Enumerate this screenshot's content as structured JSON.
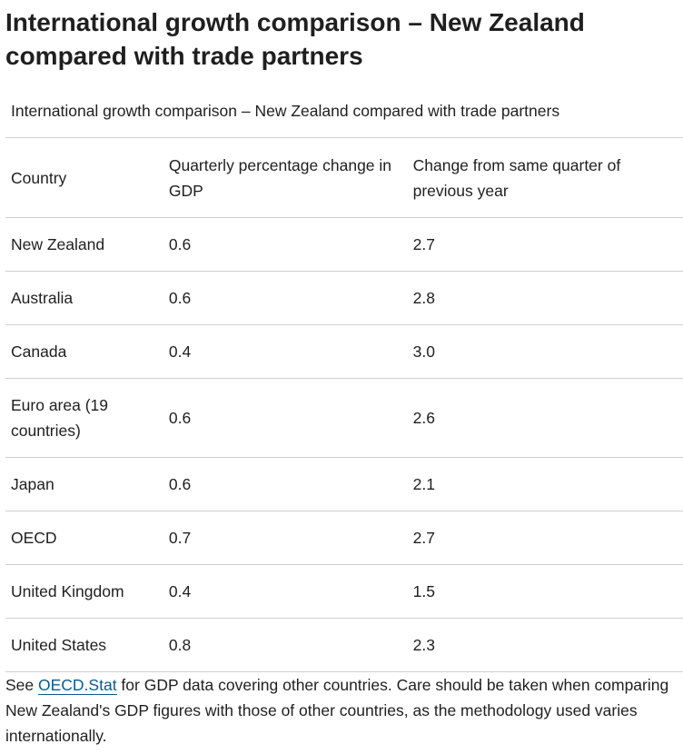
{
  "page": {
    "title": "International growth comparison – New Zealand compared with trade partners"
  },
  "table": {
    "caption": "International growth comparison – New Zealand compared with trade partners",
    "headers": {
      "country": "Country",
      "quarterly": "Quarterly percentage change in GDP",
      "annual": "Change from same quarter of previous year"
    },
    "rows": [
      {
        "country": "New Zealand",
        "quarterly": "0.6",
        "annual": "2.7"
      },
      {
        "country": "Australia",
        "quarterly": "0.6",
        "annual": "2.8"
      },
      {
        "country": "Canada",
        "quarterly": "0.4",
        "annual": "3.0"
      },
      {
        "country": "Euro area (19 countries)",
        "quarterly": "0.6",
        "annual": "2.6"
      },
      {
        "country": "Japan",
        "quarterly": "0.6",
        "annual": "2.1"
      },
      {
        "country": "OECD",
        "quarterly": "0.7",
        "annual": "2.7"
      },
      {
        "country": "United Kingdom",
        "quarterly": "0.4",
        "annual": "1.5"
      },
      {
        "country": "United States",
        "quarterly": "0.8",
        "annual": "2.3"
      }
    ]
  },
  "footnote": {
    "prefix": "See ",
    "link_text": "OECD.Stat",
    "suffix": " for GDP data covering other countries. Care should be taken when comparing New Zealand's GDP figures with those of other countries, as the methodology used varies internationally."
  },
  "colors": {
    "link": "#0b5b8c",
    "rule": "#cfcfcf",
    "text": "#1f1f1f"
  }
}
